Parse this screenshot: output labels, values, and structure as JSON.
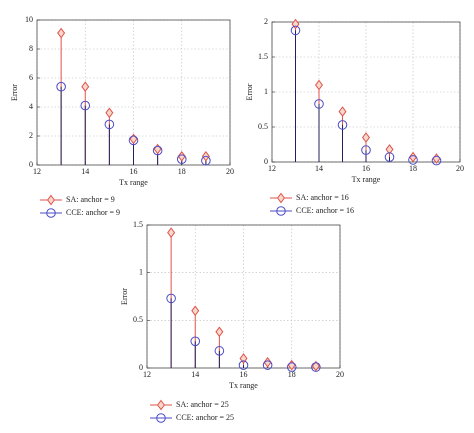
{
  "chart_data": [
    {
      "type": "stem",
      "xlabel": "Tx range",
      "ylabel": "Error",
      "x": [
        13,
        14,
        15,
        16,
        17,
        18,
        19
      ],
      "xlim": [
        12,
        20
      ],
      "xticks": [
        12,
        14,
        16,
        18,
        20
      ],
      "ylim": [
        0,
        10
      ],
      "yticks": [
        0,
        2,
        4,
        6,
        8,
        10
      ],
      "grid": true,
      "series": [
        {
          "name": "SA: anchor = 9",
          "color": "#e0524a",
          "marker": "diamond",
          "values": [
            9.1,
            5.4,
            3.6,
            1.8,
            1.1,
            0.6,
            0.6
          ]
        },
        {
          "name": "CCE: anchor = 9",
          "color": "#4b4bc6",
          "marker": "circle",
          "values": [
            5.4,
            4.1,
            2.8,
            1.7,
            1.0,
            0.4,
            0.3
          ]
        }
      ]
    },
    {
      "type": "stem",
      "xlabel": "Tx range",
      "ylabel": "Error",
      "x": [
        13,
        14,
        15,
        16,
        17,
        18,
        19
      ],
      "xlim": [
        12,
        20
      ],
      "xticks": [
        12,
        14,
        16,
        18,
        20
      ],
      "ylim": [
        0,
        2
      ],
      "yticks": [
        0,
        0.5,
        1,
        1.5,
        2
      ],
      "grid": true,
      "series": [
        {
          "name": "SA: anchor = 16",
          "color": "#e0524a",
          "marker": "diamond",
          "values": [
            1.97,
            1.1,
            0.72,
            0.35,
            0.18,
            0.07,
            0.05
          ]
        },
        {
          "name": "CCE: anchor = 16",
          "color": "#4b4bc6",
          "marker": "circle",
          "values": [
            1.88,
            0.83,
            0.53,
            0.17,
            0.07,
            0.03,
            0.02
          ]
        }
      ]
    },
    {
      "type": "stem",
      "xlabel": "Tx range",
      "ylabel": "Error",
      "x": [
        13,
        14,
        15,
        16,
        17,
        18,
        19
      ],
      "xlim": [
        12,
        20
      ],
      "xticks": [
        12,
        14,
        16,
        18,
        20
      ],
      "ylim": [
        0,
        1.5
      ],
      "yticks": [
        0,
        0.5,
        1,
        1.5
      ],
      "grid": true,
      "series": [
        {
          "name": "SA: anchor = 25",
          "color": "#e0524a",
          "marker": "diamond",
          "values": [
            1.42,
            0.6,
            0.38,
            0.1,
            0.06,
            0.03,
            0.02
          ]
        },
        {
          "name": "CCE: anchor = 25",
          "color": "#4b4bc6",
          "marker": "circle",
          "values": [
            0.73,
            0.28,
            0.18,
            0.03,
            0.03,
            0.01,
            0.01
          ]
        }
      ]
    }
  ]
}
